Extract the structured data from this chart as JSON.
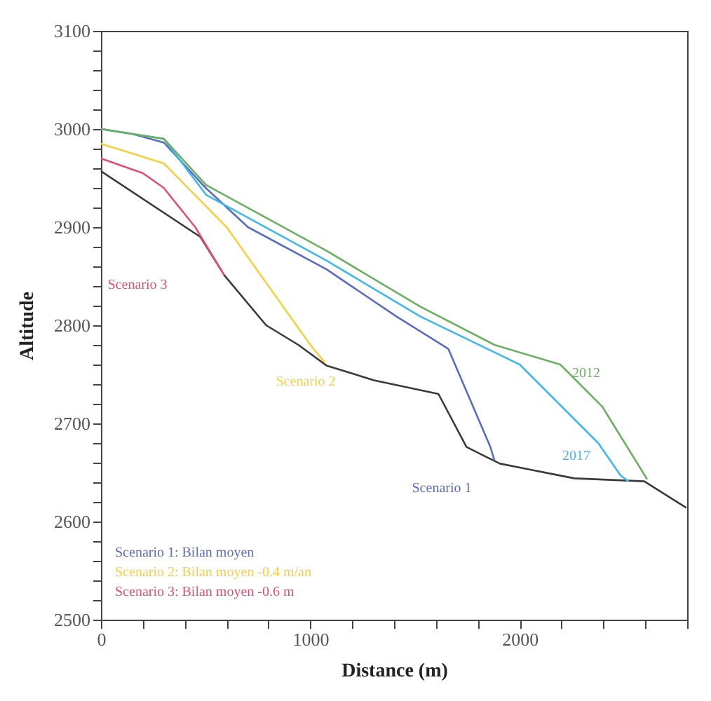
{
  "chart_data": {
    "type": "line",
    "xlabel": "Distance (m)",
    "ylabel": "Altitude",
    "xlim": [
      0,
      2800
    ],
    "ylim": [
      2500,
      3100
    ],
    "xticks": [
      0,
      {
        "value": 200,
        "label": null
      },
      {
        "value": 400,
        "label": null
      },
      {
        "value": 600,
        "label": null
      },
      {
        "value": 800,
        "label": null
      },
      1000,
      {
        "value": 1200,
        "label": null
      },
      {
        "value": 1400,
        "label": null
      },
      {
        "value": 1600,
        "label": null
      },
      {
        "value": 1800,
        "label": null
      },
      2000,
      {
        "value": 2200,
        "label": null
      },
      {
        "value": 2400,
        "label": null
      },
      {
        "value": 2600,
        "label": null
      },
      {
        "value": 2800,
        "label": null
      }
    ],
    "yticks": [
      2500,
      {
        "value": 2520,
        "label": null
      },
      {
        "value": 2540,
        "label": null
      },
      {
        "value": 2560,
        "label": null
      },
      {
        "value": 2580,
        "label": null
      },
      2600,
      {
        "value": 2620,
        "label": null
      },
      {
        "value": 2640,
        "label": null
      },
      {
        "value": 2660,
        "label": null
      },
      {
        "value": 2680,
        "label": null
      },
      2700,
      {
        "value": 2720,
        "label": null
      },
      {
        "value": 2740,
        "label": null
      },
      {
        "value": 2760,
        "label": null
      },
      {
        "value": 2780,
        "label": null
      },
      2800,
      {
        "value": 2820,
        "label": null
      },
      {
        "value": 2840,
        "label": null
      },
      {
        "value": 2860,
        "label": null
      },
      {
        "value": 2880,
        "label": null
      },
      2900,
      {
        "value": 2920,
        "label": null
      },
      {
        "value": 2940,
        "label": null
      },
      {
        "value": 2960,
        "label": null
      },
      {
        "value": 2980,
        "label": null
      },
      3000,
      {
        "value": 3020,
        "label": null
      },
      {
        "value": 3040,
        "label": null
      },
      {
        "value": 3060,
        "label": null
      },
      {
        "value": 3080,
        "label": null
      },
      3100
    ],
    "series": [
      {
        "color": "#3a3a3a",
        "x": [
          0,
          475,
          589,
          789,
          943,
          1077,
          1304,
          1612,
          1746,
          1839,
          1906,
          2261,
          2595,
          2796
        ],
        "values": [
          2957,
          2890,
          2851,
          2800,
          2780,
          2759,
          2744,
          2730,
          2676,
          2666,
          2659,
          2644,
          2641,
          2614
        ]
      },
      {
        "color": "#5a6cc0",
        "x": [
          0,
          150,
          301,
          500,
          702,
          1077,
          1411,
          1659,
          1860,
          1880
        ],
        "values": [
          3000,
          2995,
          2986,
          2940,
          2900,
          2857,
          2809,
          2776,
          2676,
          2662
        ]
      },
      {
        "color": "#f5d040",
        "x": [
          0,
          300,
          600,
          800,
          1000,
          1070
        ],
        "values": [
          2985,
          2965,
          2900,
          2840,
          2780,
          2762
        ]
      },
      {
        "color": "#e05070",
        "x": [
          0,
          200,
          300,
          450,
          589
        ],
        "values": [
          2970,
          2955,
          2940,
          2900,
          2851
        ]
      },
      {
        "color": "#40b8e8",
        "x": [
          0,
          300,
          502,
          1077,
          1525,
          2000,
          2375,
          2482,
          2520
        ],
        "values": [
          3000,
          2990,
          2933,
          2866,
          2809,
          2760,
          2680,
          2647,
          2641
        ]
      },
      {
        "color": "#6ab060",
        "x": [
          0,
          300,
          502,
          1077,
          1525,
          1880,
          2194,
          2395,
          2609
        ],
        "values": [
          3000,
          2990,
          2943,
          2876,
          2819,
          2780,
          2760,
          2717,
          2643
        ]
      }
    ],
    "annotations": [
      "Scenario 1",
      "Scenario 2",
      "Scenario 3",
      "2017",
      "2012",
      "Scenario 1: Bilan moyen",
      "Scenario 2: Bilan moyen -0.4 m/an",
      "Scenario 3: Bilan moyen -0.6 m"
    ],
    "grid": false,
    "legend": false,
    "marker": "none",
    "line_style": "solid"
  }
}
